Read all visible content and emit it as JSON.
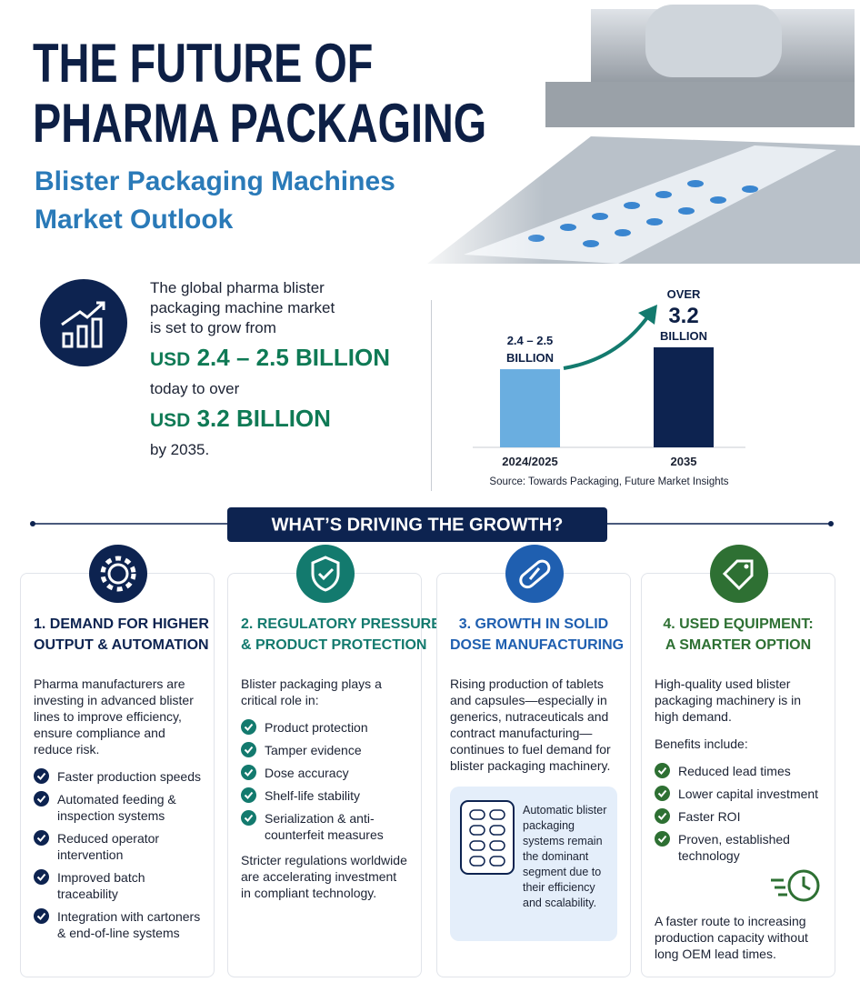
{
  "header": {
    "title_line1": "THE FUTURE OF",
    "title_line2": "PHARMA PACKAGING",
    "subtitle_line1": "Blister Packaging Machines",
    "subtitle_line2": "Market Outlook"
  },
  "summary": {
    "lines": [
      "The global pharma blister",
      "packaging machine market",
      "is set to grow from"
    ],
    "from": {
      "currency": "USD",
      "amount": "2.4 – 2.5 BILLION"
    },
    "middle": "today to over",
    "to": {
      "currency": "USD",
      "amount": "3.2 BILLION"
    },
    "end": "by 2035."
  },
  "chart_data": {
    "type": "bar",
    "categories": [
      "2024/2025",
      "2035"
    ],
    "values": [
      2.5,
      3.2
    ],
    "value_labels": [
      [
        "2.4 – 2.5",
        "BILLION"
      ],
      [
        "OVER",
        "3.2",
        "BILLION"
      ]
    ],
    "colors": [
      "#6aaee0",
      "#0d2350"
    ],
    "source": "Source: Towards Packaging, Future Market Insights"
  },
  "section_title": "WHAT’S DRIVING THE GROWTH?",
  "cards": [
    {
      "color": "#0d2350",
      "title": [
        "1. DEMAND FOR HIGHER",
        "OUTPUT & AUTOMATION"
      ],
      "intro": "Pharma manufacturers are investing in advanced blister lines to improve efficiency, ensure compliance and reduce risk.",
      "bullets": [
        "Faster production speeds",
        "Automated feeding & inspection systems",
        "Reduced operator intervention",
        "Improved batch traceability",
        "Integration with cartoners & end-of-line systems"
      ]
    },
    {
      "color": "#137a6e",
      "title": [
        "2. REGULATORY PRESSURE",
        "& PRODUCT PROTECTION"
      ],
      "intro": "Blister packaging plays a critical role in:",
      "bullets": [
        "Product protection",
        "Tamper evidence",
        "Dose accuracy",
        "Shelf-life stability",
        "Serialization & anti-counterfeit measures"
      ],
      "footer": "Stricter regulations worldwide are accelerating investment in compliant technology."
    },
    {
      "color": "#1f5fb0",
      "title": [
        "3. GROWTH IN SOLID",
        "DOSE MANUFACTURING"
      ],
      "intro": "Rising production of tablets and capsules—especially in generics, nutraceuticals and contract manufacturing—continues to fuel demand for blister packaging machinery.",
      "callout": "Automatic blister packaging systems remain the dominant segment due to their efficiency and scalability."
    },
    {
      "color": "#2e7033",
      "title": [
        "4. USED EQUIPMENT:",
        "A SMARTER OPTION"
      ],
      "intro": "High-quality used blister packaging machinery is in high demand.",
      "sub": "Benefits include:",
      "bullets": [
        "Reduced lead times",
        "Lower capital investment",
        "Faster ROI",
        "Proven, established technology"
      ],
      "footer": "A faster route to increasing production capacity without long OEM lead times."
    }
  ]
}
